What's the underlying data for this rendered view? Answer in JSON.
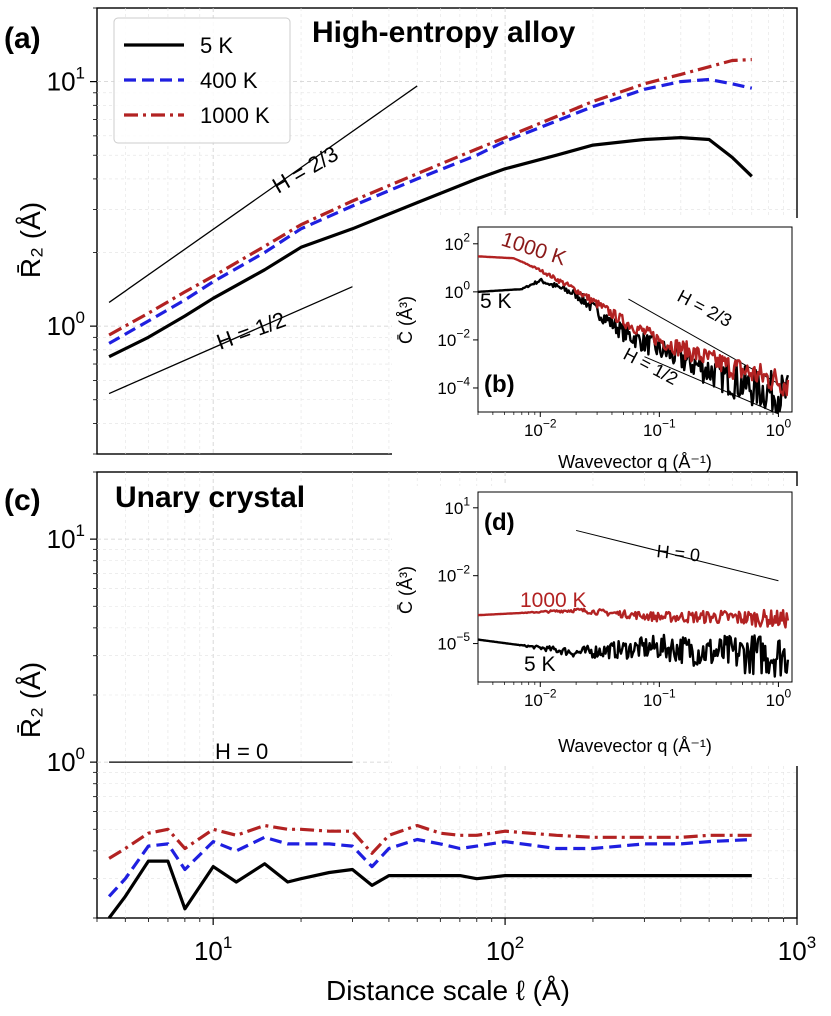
{
  "figure": {
    "x_axis_label": "Distance scale ℓ (Å)",
    "y_axis_label": "R̄₂ (Å)"
  },
  "chart_data": [
    {
      "id": "a",
      "type": "line",
      "tag": "(a)",
      "title": "High-entropy alloy",
      "xscale": "log",
      "yscale": "log",
      "xlim": [
        4.0,
        1000
      ],
      "ylim": [
        0.3,
        20
      ],
      "xticks": [
        {
          "v": 10,
          "b": "10",
          "e": "1"
        },
        {
          "v": 100,
          "b": "10",
          "e": "2"
        },
        {
          "v": 1000,
          "b": "10",
          "e": "3"
        }
      ],
      "yticks": [
        {
          "v": 1,
          "b": "10",
          "e": "0"
        },
        {
          "v": 10,
          "b": "10",
          "e": "1"
        }
      ],
      "legend": {
        "placement": "top-left",
        "entries": [
          {
            "label": "5 K",
            "series": "5K"
          },
          {
            "label": "400 K",
            "series": "400K"
          },
          {
            "label": "1000 K",
            "series": "1000K"
          }
        ]
      },
      "series": [
        {
          "name": "5 K",
          "key": "5K",
          "color": "#000000",
          "dash": "",
          "x": [
            4.4,
            6,
            8,
            10,
            15,
            20,
            30,
            50,
            80,
            100,
            150,
            200,
            300,
            400,
            500,
            600,
            700
          ],
          "y": [
            0.75,
            0.9,
            1.1,
            1.3,
            1.7,
            2.1,
            2.5,
            3.2,
            4.0,
            4.4,
            5.0,
            5.5,
            5.8,
            5.9,
            5.8,
            4.9,
            4.1
          ]
        },
        {
          "name": "400 K",
          "key": "400K",
          "color": "#1f1fe0",
          "dash": "12 6",
          "x": [
            4.4,
            6,
            8,
            10,
            15,
            20,
            30,
            50,
            80,
            100,
            150,
            200,
            300,
            400,
            500,
            600,
            700
          ],
          "y": [
            0.85,
            1.05,
            1.28,
            1.52,
            2.0,
            2.5,
            3.1,
            4.0,
            5.0,
            5.7,
            6.9,
            7.9,
            9.3,
            10.0,
            10.2,
            9.8,
            9.4
          ]
        },
        {
          "name": "1000 K",
          "key": "1000K",
          "color": "#b22222",
          "dash": "14 5 3 5",
          "x": [
            4.4,
            6,
            8,
            10,
            15,
            20,
            30,
            50,
            80,
            100,
            150,
            200,
            300,
            400,
            500,
            600,
            700
          ],
          "y": [
            0.92,
            1.13,
            1.38,
            1.6,
            2.12,
            2.6,
            3.25,
            4.2,
            5.3,
            5.9,
            7.2,
            8.3,
            9.8,
            10.7,
            11.5,
            12.2,
            12.3
          ]
        }
      ],
      "reference_lines": [
        {
          "label": "H = 2/3",
          "x": [
            4.4,
            50
          ],
          "y": [
            1.25,
            9.6
          ]
        },
        {
          "label": "H = 1/2",
          "x": [
            4.4,
            30
          ],
          "y": [
            0.53,
            1.45
          ]
        }
      ],
      "inset": {
        "id": "b",
        "tag": "(b)",
        "xlabel": "Wavevector q (Å⁻¹)",
        "ylabel": "C̄ (Å³)",
        "xscale": "log",
        "yscale": "log",
        "xlim": [
          0.003,
          1.3
        ],
        "ylim": [
          1e-05,
          500
        ],
        "xticks": [
          {
            "v": 0.01,
            "b": "10",
            "e": "−2"
          },
          {
            "v": 0.1,
            "b": "10",
            "e": "−1"
          },
          {
            "v": 1,
            "b": "10",
            "e": "0"
          }
        ],
        "yticks": [
          {
            "v": 0.0001,
            "b": "10",
            "e": "−4"
          },
          {
            "v": 0.01,
            "b": "10",
            "e": "−2"
          },
          {
            "v": 1,
            "b": "10",
            "e": "0"
          },
          {
            "v": 100,
            "b": "10",
            "e": "2"
          }
        ],
        "series": [
          {
            "name": "5 K",
            "key": "5K",
            "color": "#000000",
            "trend": [
              [
                0.003,
                1
              ],
              [
                0.007,
                1.3
              ],
              [
                0.01,
                3
              ],
              [
                0.02,
                0.8
              ],
              [
                0.05,
                0.02
              ],
              [
                0.1,
                0.004
              ],
              [
                0.3,
                0.0004
              ],
              [
                0.6,
                0.0001
              ],
              [
                1.2,
                5e-05
              ]
            ],
            "noise": 0.9
          },
          {
            "name": "1000 K",
            "key": "1000K",
            "color": "#b22222",
            "trend": [
              [
                0.003,
                30
              ],
              [
                0.006,
                25
              ],
              [
                0.01,
                8
              ],
              [
                0.02,
                1.2
              ],
              [
                0.05,
                0.06
              ],
              [
                0.1,
                0.01
              ],
              [
                0.3,
                0.0012
              ],
              [
                0.6,
                0.0004
              ],
              [
                1.2,
                0.00015
              ]
            ],
            "noise": 0.6
          }
        ],
        "series_labels": [
          {
            "text": "1000 K",
            "key": "1000K"
          },
          {
            "text": "5 K",
            "key": "5K"
          }
        ],
        "reference_lines": [
          {
            "label": "H = 2/3",
            "x": [
              0.055,
              1.0
            ],
            "y": [
              0.5,
              0.00015
            ]
          },
          {
            "label": "H = 1/2",
            "x": [
              0.075,
              1.0
            ],
            "y": [
              0.002,
              8.3e-06
            ]
          }
        ]
      }
    },
    {
      "id": "c",
      "type": "line",
      "tag": "(c)",
      "title": "Unary crystal",
      "xscale": "log",
      "yscale": "log",
      "xlim": [
        4.0,
        1000
      ],
      "ylim": [
        0.2,
        20
      ],
      "xticks": [
        {
          "v": 10,
          "b": "10",
          "e": "1"
        },
        {
          "v": 100,
          "b": "10",
          "e": "2"
        },
        {
          "v": 1000,
          "b": "10",
          "e": "3"
        }
      ],
      "yticks": [
        {
          "v": 1,
          "b": "10",
          "e": "0"
        },
        {
          "v": 10,
          "b": "10",
          "e": "1"
        }
      ],
      "series": [
        {
          "name": "5 K",
          "key": "5K",
          "color": "#000000",
          "dash": "",
          "x": [
            4.4,
            5,
            6,
            7,
            8,
            10,
            12,
            15,
            18,
            20,
            25,
            30,
            35,
            40,
            50,
            60,
            70,
            80,
            100,
            150,
            200,
            300,
            400,
            500,
            700
          ],
          "y": [
            0.2,
            0.25,
            0.36,
            0.36,
            0.22,
            0.34,
            0.29,
            0.35,
            0.29,
            0.3,
            0.32,
            0.33,
            0.28,
            0.31,
            0.31,
            0.31,
            0.31,
            0.3,
            0.31,
            0.31,
            0.31,
            0.31,
            0.31,
            0.31,
            0.31
          ]
        },
        {
          "name": "400 K",
          "key": "400K",
          "color": "#1f1fe0",
          "dash": "12 6",
          "x": [
            4.4,
            5,
            6,
            7,
            8,
            10,
            12,
            15,
            18,
            20,
            25,
            30,
            35,
            40,
            50,
            60,
            70,
            80,
            100,
            150,
            200,
            300,
            400,
            500,
            700
          ],
          "y": [
            0.25,
            0.3,
            0.42,
            0.43,
            0.33,
            0.44,
            0.4,
            0.46,
            0.43,
            0.43,
            0.43,
            0.42,
            0.34,
            0.41,
            0.45,
            0.43,
            0.41,
            0.42,
            0.44,
            0.41,
            0.41,
            0.43,
            0.43,
            0.44,
            0.45
          ]
        },
        {
          "name": "1000 K",
          "key": "1000K",
          "color": "#b22222",
          "dash": "14 5 3 5",
          "x": [
            4.4,
            5,
            6,
            7,
            8,
            10,
            12,
            15,
            18,
            20,
            25,
            30,
            35,
            40,
            50,
            60,
            70,
            80,
            100,
            150,
            200,
            300,
            400,
            500,
            700
          ],
          "y": [
            0.37,
            0.41,
            0.48,
            0.5,
            0.41,
            0.5,
            0.47,
            0.52,
            0.5,
            0.5,
            0.49,
            0.49,
            0.39,
            0.47,
            0.52,
            0.48,
            0.47,
            0.47,
            0.49,
            0.47,
            0.46,
            0.46,
            0.46,
            0.47,
            0.47
          ]
        }
      ],
      "reference_lines": [
        {
          "label": "H = 0",
          "x": [
            4.4,
            30
          ],
          "y": [
            1.0,
            1.0
          ]
        }
      ],
      "inset": {
        "id": "d",
        "tag": "(d)",
        "xlabel": "Wavevector q (Å⁻¹)",
        "ylabel": "C̄ (Å³)",
        "xscale": "log",
        "yscale": "log",
        "xlim": [
          0.003,
          1.3
        ],
        "ylim": [
          2e-07,
          50
        ],
        "xticks": [
          {
            "v": 0.01,
            "b": "10",
            "e": "−2"
          },
          {
            "v": 0.1,
            "b": "10",
            "e": "−1"
          },
          {
            "v": 1,
            "b": "10",
            "e": "0"
          }
        ],
        "yticks": [
          {
            "v": 1e-05,
            "b": "10",
            "e": "−5"
          },
          {
            "v": 0.01,
            "b": "10",
            "e": "−2"
          },
          {
            "v": 10,
            "b": "10",
            "e": "1"
          }
        ],
        "series": [
          {
            "name": "5 K",
            "key": "5K",
            "color": "#000000",
            "trend": [
              [
                0.003,
                1.5e-05
              ],
              [
                0.02,
                4e-06
              ],
              [
                0.1,
                7e-06
              ],
              [
                0.3,
                4e-06
              ],
              [
                1.2,
                3e-06
              ]
            ],
            "noise": 1.0
          },
          {
            "name": "1000 K",
            "key": "1000K",
            "color": "#b22222",
            "trend": [
              [
                0.003,
                0.00018
              ],
              [
                0.02,
                0.0003
              ],
              [
                0.1,
                0.00015
              ],
              [
                0.3,
                0.00015
              ],
              [
                1.2,
                0.00012
              ]
            ],
            "noise": 0.4
          }
        ],
        "series_labels": [
          {
            "text": "1000 K",
            "key": "1000K"
          },
          {
            "text": "5 K",
            "key": "5K"
          }
        ],
        "reference_lines": [
          {
            "label": "H = 0",
            "x": [
              0.02,
              1.0
            ],
            "y": [
              1.0,
              0.006
            ]
          }
        ]
      }
    }
  ]
}
